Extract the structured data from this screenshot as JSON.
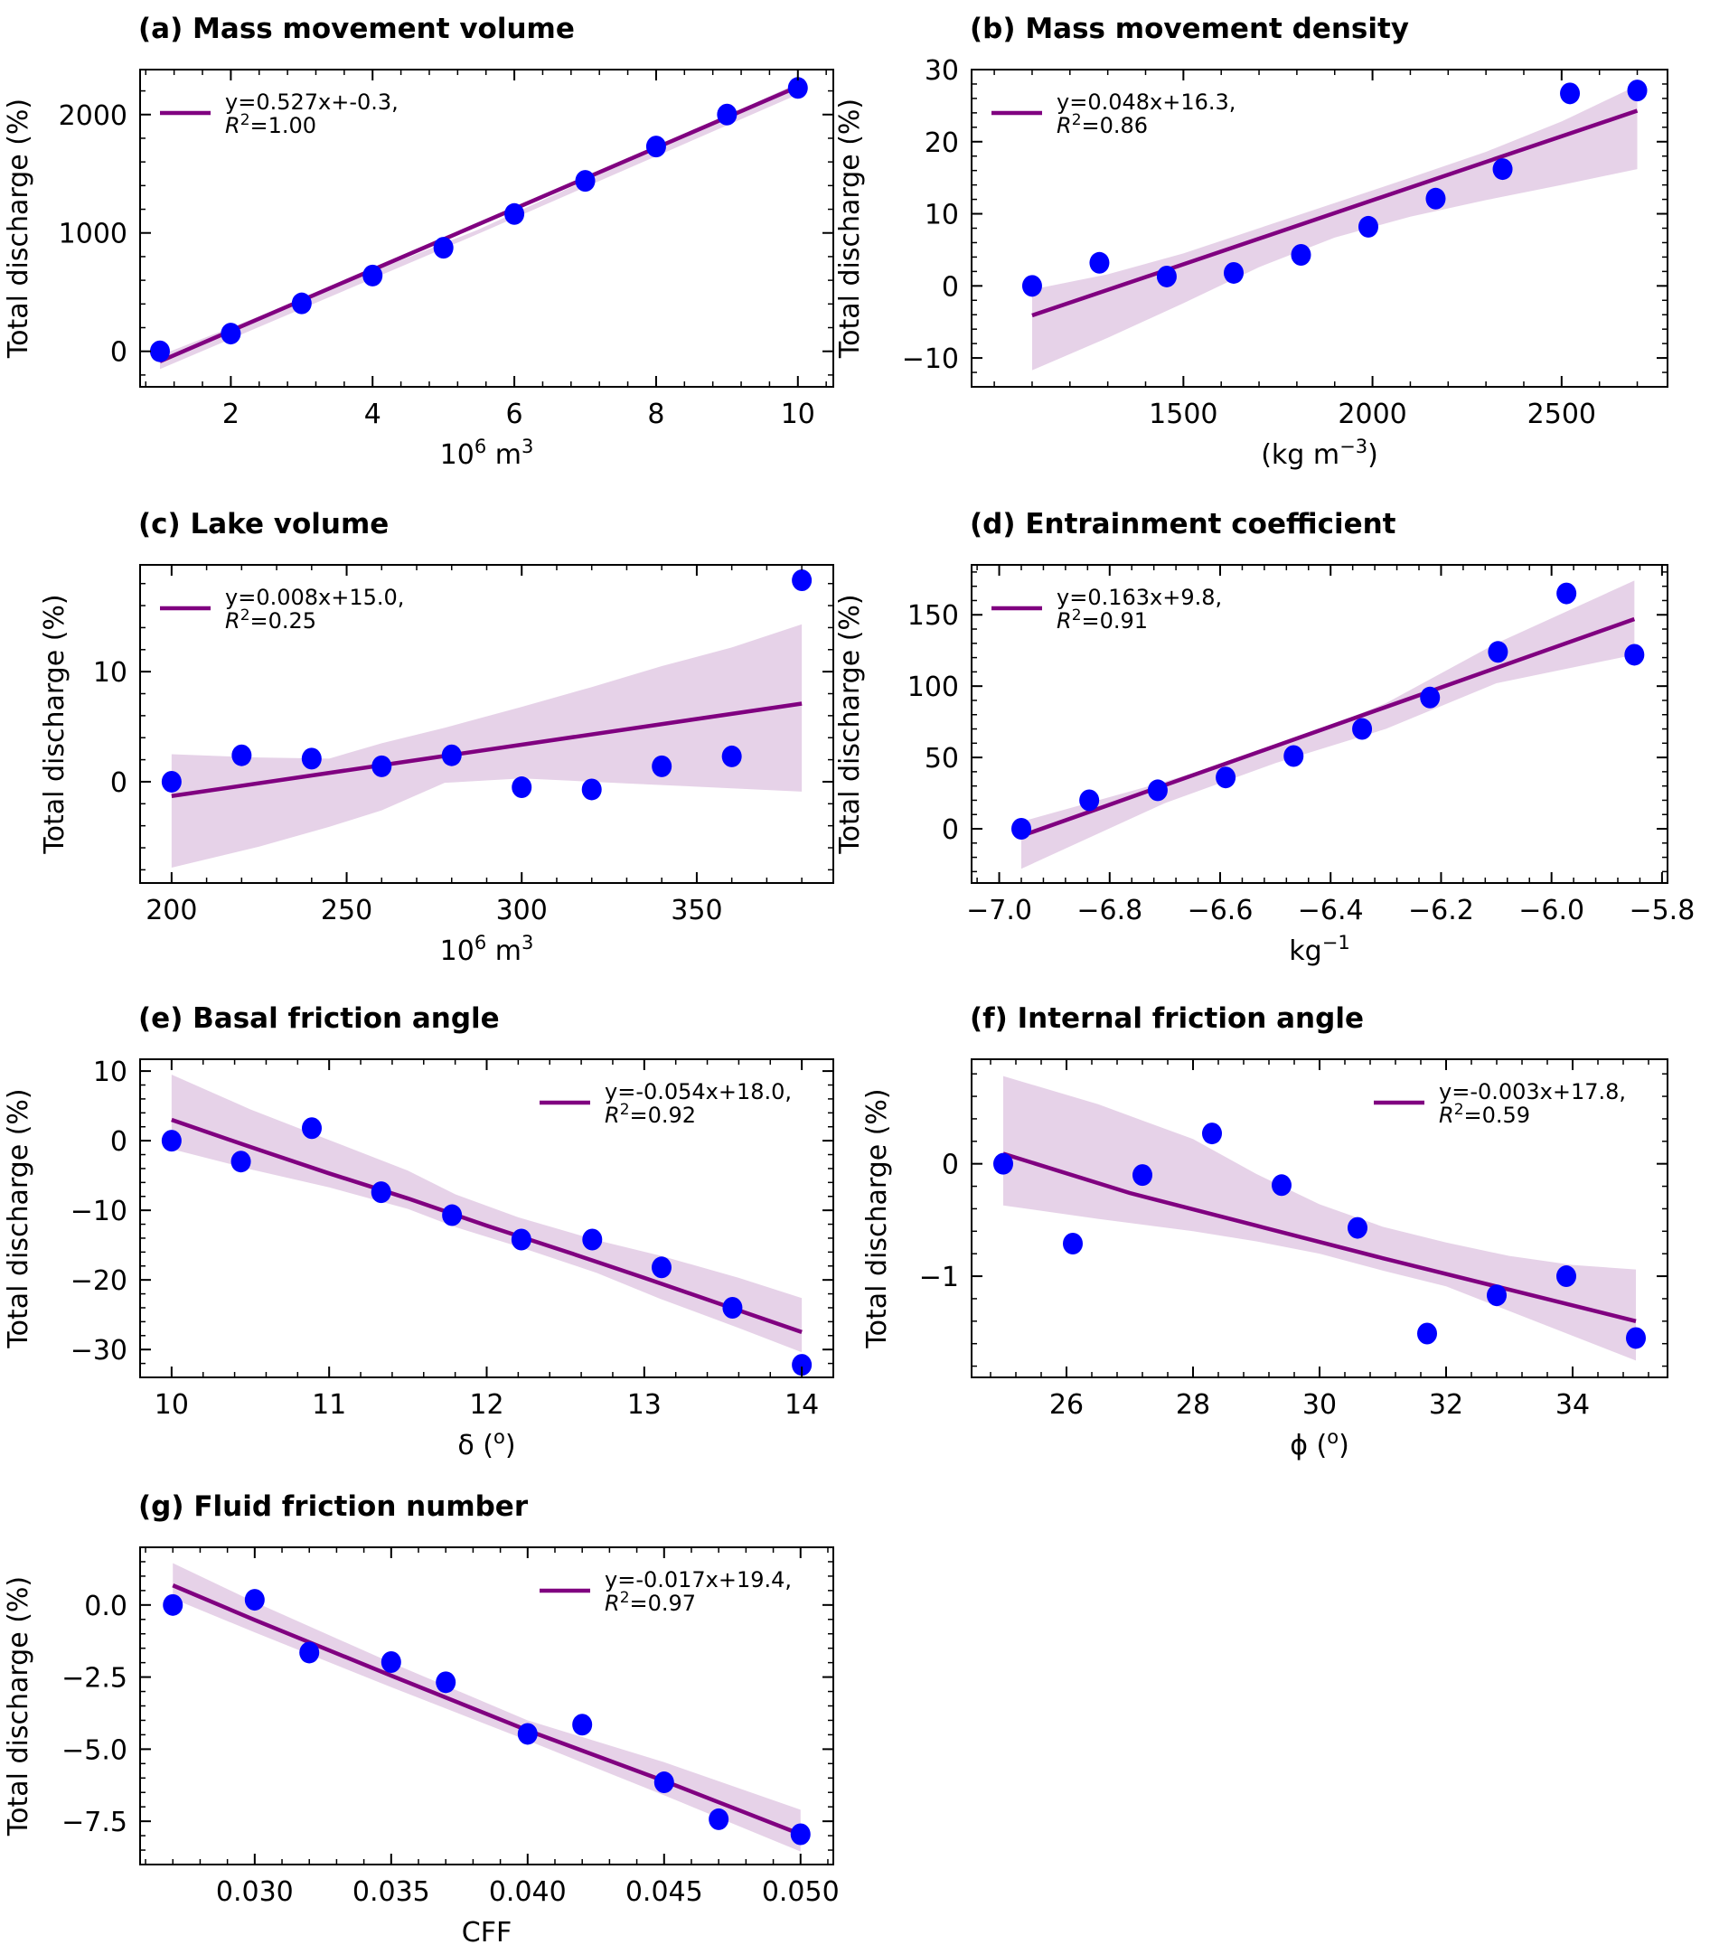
{
  "figure": {
    "colors": {
      "points": "#0000ff",
      "fit_line": "#800080",
      "confidence_band": "#e6d2e8",
      "axes": "#000000"
    }
  },
  "chart_data": [
    {
      "id": "a",
      "type": "scatter",
      "title": "(a) Mass movement volume",
      "xlabel": "10^6 m^3",
      "xlabel_parts": {
        "base": "10",
        "sup1": "6",
        "mid": " m",
        "sup2": "3",
        "tail": ""
      },
      "ylabel": "Total discharge (%)",
      "xlim": [
        0.72,
        10.5
      ],
      "ylim": [
        -300,
        2380
      ],
      "xticks": [
        2,
        4,
        6,
        8,
        10
      ],
      "xtick_labels": [
        "2",
        "4",
        "6",
        "8",
        "10"
      ],
      "yticks": [
        0,
        1000,
        2000
      ],
      "ytick_labels": [
        "0",
        "1000",
        "2000"
      ],
      "x": [
        1,
        2,
        3,
        4,
        5,
        6,
        7,
        8,
        9,
        10
      ],
      "y": [
        0,
        150,
        405,
        640,
        875,
        1160,
        1440,
        1730,
        2000,
        2225
      ],
      "fit": {
        "x": [
          1,
          10
        ],
        "y": [
          -85,
          2235
        ]
      },
      "band": {
        "x": [
          1,
          5.5,
          10
        ],
        "upper": [
          -35,
          1030,
          2265
        ],
        "lower": [
          -150,
          995,
          2170
        ]
      },
      "legend": {
        "line1": "y=0.527x+-0.3,",
        "r2_prefix": "R",
        "r2_sup": "2",
        "r2_value": "=1.00",
        "position": "upper-left"
      }
    },
    {
      "id": "b",
      "type": "scatter",
      "title": "(b) Mass movement density",
      "xlabel": "(kg m^-3)",
      "xlabel_parts": {
        "base": "(kg m",
        "sup1": "−3",
        "mid": ")",
        "sup2": "",
        "tail": ""
      },
      "ylabel": "Total discharge (%)",
      "xlim": [
        940,
        2780
      ],
      "ylim": [
        -14,
        30
      ],
      "xticks": [
        1500,
        2000,
        2500
      ],
      "xtick_labels": [
        "1500",
        "2000",
        "2500"
      ],
      "yticks": [
        -10,
        0,
        10,
        20,
        30
      ],
      "ytick_labels": [
        "−10",
        "0",
        "10",
        "20",
        "30"
      ],
      "x": [
        1100,
        1278,
        1456,
        1633,
        1811,
        1989,
        2167,
        2344,
        2522,
        2700
      ],
      "y": [
        0.0,
        3.2,
        1.3,
        1.8,
        4.3,
        8.2,
        12.1,
        16.2,
        26.7,
        27.1
      ],
      "fit": {
        "x": [
          1100,
          2700
        ],
        "y": [
          -4.1,
          24.3
        ]
      },
      "band": {
        "x": [
          1100,
          1300,
          1500,
          1700,
          1900,
          2100,
          2300,
          2500,
          2700
        ],
        "upper": [
          -0.5,
          1.6,
          4.5,
          8.0,
          11.5,
          15.0,
          18.6,
          22.8,
          27.8
        ],
        "lower": [
          -11.7,
          -7.2,
          -2.4,
          2.6,
          6.7,
          9.6,
          11.9,
          14.0,
          16.2
        ]
      },
      "legend": {
        "line1": "y=0.048x+16.3,",
        "r2_prefix": "R",
        "r2_sup": "2",
        "r2_value": "=0.86",
        "position": "upper-left"
      }
    },
    {
      "id": "c",
      "type": "scatter",
      "title": "(c) Lake volume",
      "xlabel": "10^6 m^3",
      "xlabel_parts": {
        "base": "10",
        "sup1": "6",
        "mid": " m",
        "sup2": "3",
        "tail": ""
      },
      "ylabel": "Total discharge (%)",
      "xlim": [
        191,
        389
      ],
      "ylim": [
        -9.2,
        19.7
      ],
      "xticks": [
        200,
        250,
        300,
        350
      ],
      "xtick_labels": [
        "200",
        "250",
        "300",
        "350"
      ],
      "yticks": [
        0,
        10
      ],
      "ytick_labels": [
        "0",
        "10"
      ],
      "x": [
        200,
        220,
        240,
        260,
        280,
        300,
        320,
        340,
        360,
        380
      ],
      "y": [
        0.0,
        2.4,
        2.1,
        1.4,
        2.4,
        -0.5,
        -0.7,
        1.4,
        2.3,
        18.3
      ],
      "fit": {
        "x": [
          200,
          380
        ],
        "y": [
          -1.3,
          7.1
        ]
      },
      "band": {
        "x": [
          200,
          225,
          245,
          260,
          278,
          300,
          320,
          340,
          360,
          380
        ],
        "upper": [
          2.5,
          2.2,
          2.1,
          3.5,
          4.9,
          6.8,
          8.6,
          10.5,
          12.2,
          14.3
        ],
        "lower": [
          -7.8,
          -5.9,
          -4.1,
          -2.6,
          -0.1,
          0.3,
          0.0,
          -0.3,
          -0.6,
          -0.9
        ]
      },
      "legend": {
        "line1": "y=0.008x+15.0,",
        "r2_prefix": "R",
        "r2_sup": "2",
        "r2_value": "=0.25",
        "position": "upper-left"
      }
    },
    {
      "id": "d",
      "type": "scatter",
      "title": "(d) Entrainment coefficient",
      "xlabel": "kg^-1",
      "xlabel_parts": {
        "base": "kg",
        "sup1": "−1",
        "mid": "",
        "sup2": "",
        "tail": ""
      },
      "ylabel": "Total discharge (%)",
      "xlim": [
        -7.05,
        -5.79
      ],
      "ylim": [
        -38,
        185
      ],
      "xticks": [
        -7.0,
        -6.8,
        -6.6,
        -6.4,
        -6.2,
        -6.0,
        -5.8
      ],
      "xtick_labels": [
        "−7.0",
        "−6.8",
        "−6.6",
        "−6.4",
        "−6.2",
        "−6.0",
        "−5.8"
      ],
      "yticks": [
        0,
        50,
        100,
        150
      ],
      "ytick_labels": [
        "0",
        "50",
        "100",
        "150"
      ],
      "x": [
        -6.96,
        -6.837,
        -6.713,
        -6.59,
        -6.467,
        -6.343,
        -6.22,
        -6.097,
        -5.973,
        -5.85
      ],
      "y": [
        0,
        20,
        27,
        36,
        51,
        70,
        92,
        124,
        165,
        122
      ],
      "fit": {
        "x": [
          -6.96,
          -5.85
        ],
        "y": [
          -5,
          147
        ]
      },
      "band": {
        "x": [
          -6.96,
          -6.7,
          -6.5,
          -6.3,
          -6.1,
          -5.85
        ],
        "upper": [
          5,
          33,
          57,
          88,
          130,
          174
        ],
        "lower": [
          -28,
          18,
          46,
          70,
          102,
          122
        ]
      },
      "legend": {
        "line1": "y=0.163x+9.8,",
        "r2_prefix": "R",
        "r2_sup": "2",
        "r2_value": "=0.91",
        "position": "upper-left"
      }
    },
    {
      "id": "e",
      "type": "scatter",
      "title": "(e) Basal friction angle",
      "xlabel": "δ (o)",
      "xlabel_parts": {
        "base": "δ (",
        "sup1": "o",
        "mid": ")",
        "sup2": "",
        "tail": ""
      },
      "ylabel": "Total discharge (%)",
      "xlim": [
        9.8,
        14.2
      ],
      "ylim": [
        -34,
        11.7
      ],
      "xticks": [
        10,
        11,
        12,
        13,
        14
      ],
      "xtick_labels": [
        "10",
        "11",
        "12",
        "13",
        "14"
      ],
      "yticks": [
        -30,
        -20,
        -10,
        0,
        10
      ],
      "ytick_labels": [
        "−30",
        "−20",
        "−10",
        "0",
        "10"
      ],
      "x": [
        10,
        10.44,
        10.89,
        11.33,
        11.78,
        12.22,
        12.67,
        13.11,
        13.56,
        14
      ],
      "y": [
        0.0,
        -3.0,
        1.8,
        -7.4,
        -10.7,
        -14.2,
        -14.2,
        -18.2,
        -24.0,
        -32.2
      ],
      "fit": {
        "x": [
          10,
          10.5,
          11,
          11.5,
          12,
          12.5,
          13,
          13.5,
          14
        ],
        "y": [
          3.0,
          -0.9,
          -4.7,
          -8.3,
          -12.2,
          -15.9,
          -19.7,
          -23.6,
          -27.5
        ]
      },
      "band": {
        "x": [
          10,
          10.5,
          11,
          11.5,
          11.8,
          12.2,
          12.7,
          13.1,
          13.6,
          14
        ],
        "upper": [
          9.5,
          4.5,
          0.1,
          -4.3,
          -7.7,
          -11.0,
          -14.3,
          -16.5,
          -19.7,
          -22.6
        ],
        "lower": [
          -1.2,
          -4.1,
          -6.7,
          -9.8,
          -12.4,
          -15.2,
          -19.0,
          -22.7,
          -26.9,
          -30.4
        ]
      },
      "legend": {
        "line1": "y=-0.054x+18.0,",
        "r2_prefix": "R",
        "r2_sup": "2",
        "r2_value": "=0.92",
        "position": "upper-right"
      }
    },
    {
      "id": "f",
      "type": "scatter",
      "title": "(f) Internal friction angle",
      "xlabel": "ϕ (o)",
      "xlabel_parts": {
        "base": "ϕ (",
        "sup1": "o",
        "mid": ")",
        "sup2": "",
        "tail": ""
      },
      "ylabel": "Total discharge (%)",
      "xlim": [
        24.5,
        35.5
      ],
      "ylim": [
        -1.9,
        0.93
      ],
      "xticks": [
        26,
        28,
        30,
        32,
        34
      ],
      "xtick_labels": [
        "26",
        "28",
        "30",
        "32",
        "34"
      ],
      "yticks": [
        -1,
        0
      ],
      "ytick_labels": [
        "−1",
        "0"
      ],
      "x": [
        25,
        26.1,
        27.2,
        28.3,
        29.4,
        30.6,
        31.7,
        32.8,
        33.9,
        35
      ],
      "y": [
        0.0,
        -0.71,
        -0.1,
        0.27,
        -0.19,
        -0.57,
        -1.51,
        -1.17,
        -1.0,
        -1.55
      ],
      "fit": {
        "x": [
          25,
          27,
          29,
          31,
          33,
          35
        ],
        "y": [
          0.09,
          -0.26,
          -0.55,
          -0.84,
          -1.12,
          -1.4
        ]
      },
      "band": {
        "x": [
          25,
          26.5,
          28,
          29,
          30,
          31,
          32,
          33,
          34,
          35
        ],
        "upper": [
          0.78,
          0.53,
          0.22,
          -0.09,
          -0.36,
          -0.56,
          -0.7,
          -0.82,
          -0.9,
          -0.94
        ],
        "lower": [
          -0.37,
          -0.49,
          -0.6,
          -0.69,
          -0.8,
          -0.95,
          -1.09,
          -1.31,
          -1.53,
          -1.75
        ]
      },
      "legend": {
        "line1": "y=-0.003x+17.8,",
        "r2_prefix": "R",
        "r2_sup": "2",
        "r2_value": "=0.59",
        "position": "upper-right"
      }
    },
    {
      "id": "g",
      "type": "scatter",
      "title": "(g) Fluid friction number",
      "xlabel": "CFF",
      "xlabel_parts": {
        "base": "CFF",
        "sup1": "",
        "mid": "",
        "sup2": "",
        "tail": ""
      },
      "ylabel": "Total discharge (%)",
      "xlim": [
        0.0258,
        0.0512
      ],
      "ylim": [
        -9.0,
        2.0
      ],
      "xticks": [
        0.03,
        0.035,
        0.04,
        0.045,
        0.05
      ],
      "xtick_labels": [
        "0.030",
        "0.035",
        "0.040",
        "0.045",
        "0.050"
      ],
      "yticks": [
        -7.5,
        -5.0,
        -2.5,
        0.0
      ],
      "ytick_labels": [
        "−7.5",
        "−5.0",
        "−2.5",
        "0.0"
      ],
      "x": [
        0.027,
        0.03,
        0.032,
        0.035,
        0.037,
        0.04,
        0.042,
        0.045,
        0.047,
        0.05
      ],
      "y": [
        0.0,
        0.18,
        -1.65,
        -1.98,
        -2.68,
        -4.47,
        -4.15,
        -6.15,
        -7.43,
        -7.95
      ],
      "fit": {
        "x": [
          0.027,
          0.03,
          0.035,
          0.04,
          0.045,
          0.05
        ],
        "y": [
          0.68,
          -0.52,
          -2.45,
          -4.35,
          -6.1,
          -7.95
        ]
      },
      "band": {
        "x": [
          0.027,
          0.03,
          0.035,
          0.04,
          0.045,
          0.05
        ],
        "upper": [
          1.45,
          0.1,
          -2.0,
          -4.0,
          -5.45,
          -7.1
        ],
        "lower": [
          0.22,
          -0.95,
          -2.85,
          -4.7,
          -6.6,
          -8.55
        ]
      },
      "legend": {
        "line1": "y=-0.017x+19.4,",
        "r2_prefix": "R",
        "r2_sup": "2",
        "r2_value": "=0.97",
        "position": "upper-right"
      }
    }
  ]
}
